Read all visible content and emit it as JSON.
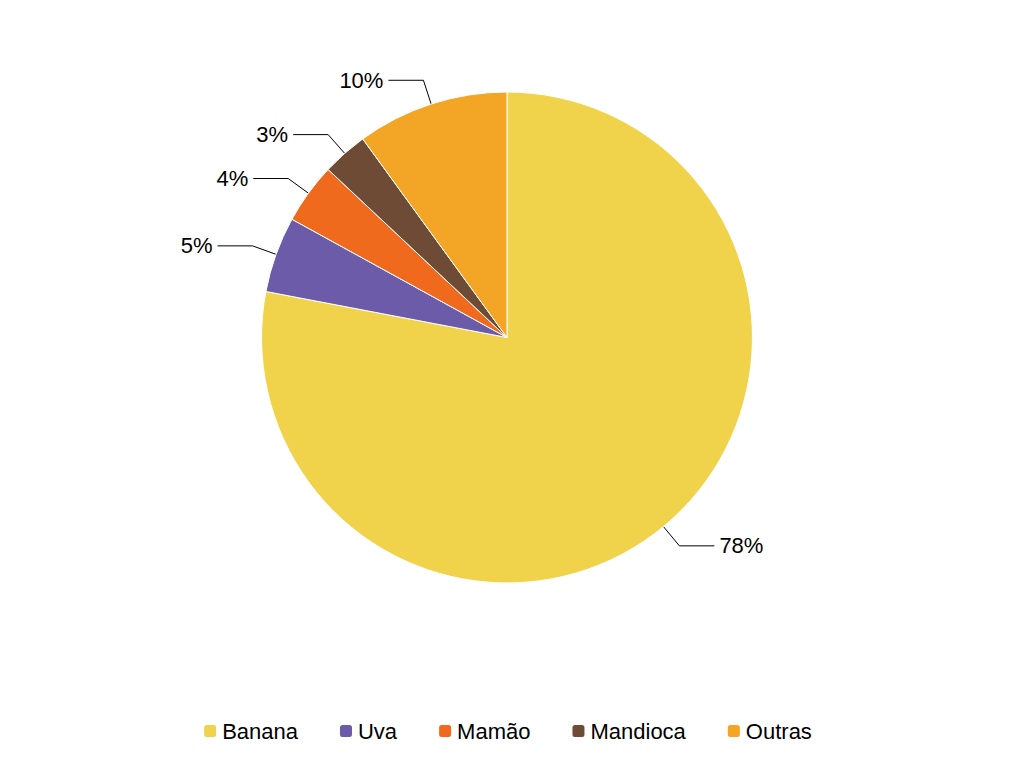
{
  "chart_data": {
    "type": "pie",
    "categories": [
      "Banana",
      "Uva",
      "Mamão",
      "Mandioca",
      "Outras"
    ],
    "values": [
      78,
      5,
      4,
      3,
      10
    ],
    "value_labels": [
      "78%",
      "5%",
      "4%",
      "3%",
      "10%"
    ],
    "colors": [
      "#f0d34a",
      "#6b5ba8",
      "#f06a1e",
      "#6e4b34",
      "#f3a526"
    ],
    "data_labels": true,
    "legend": "bottom"
  }
}
